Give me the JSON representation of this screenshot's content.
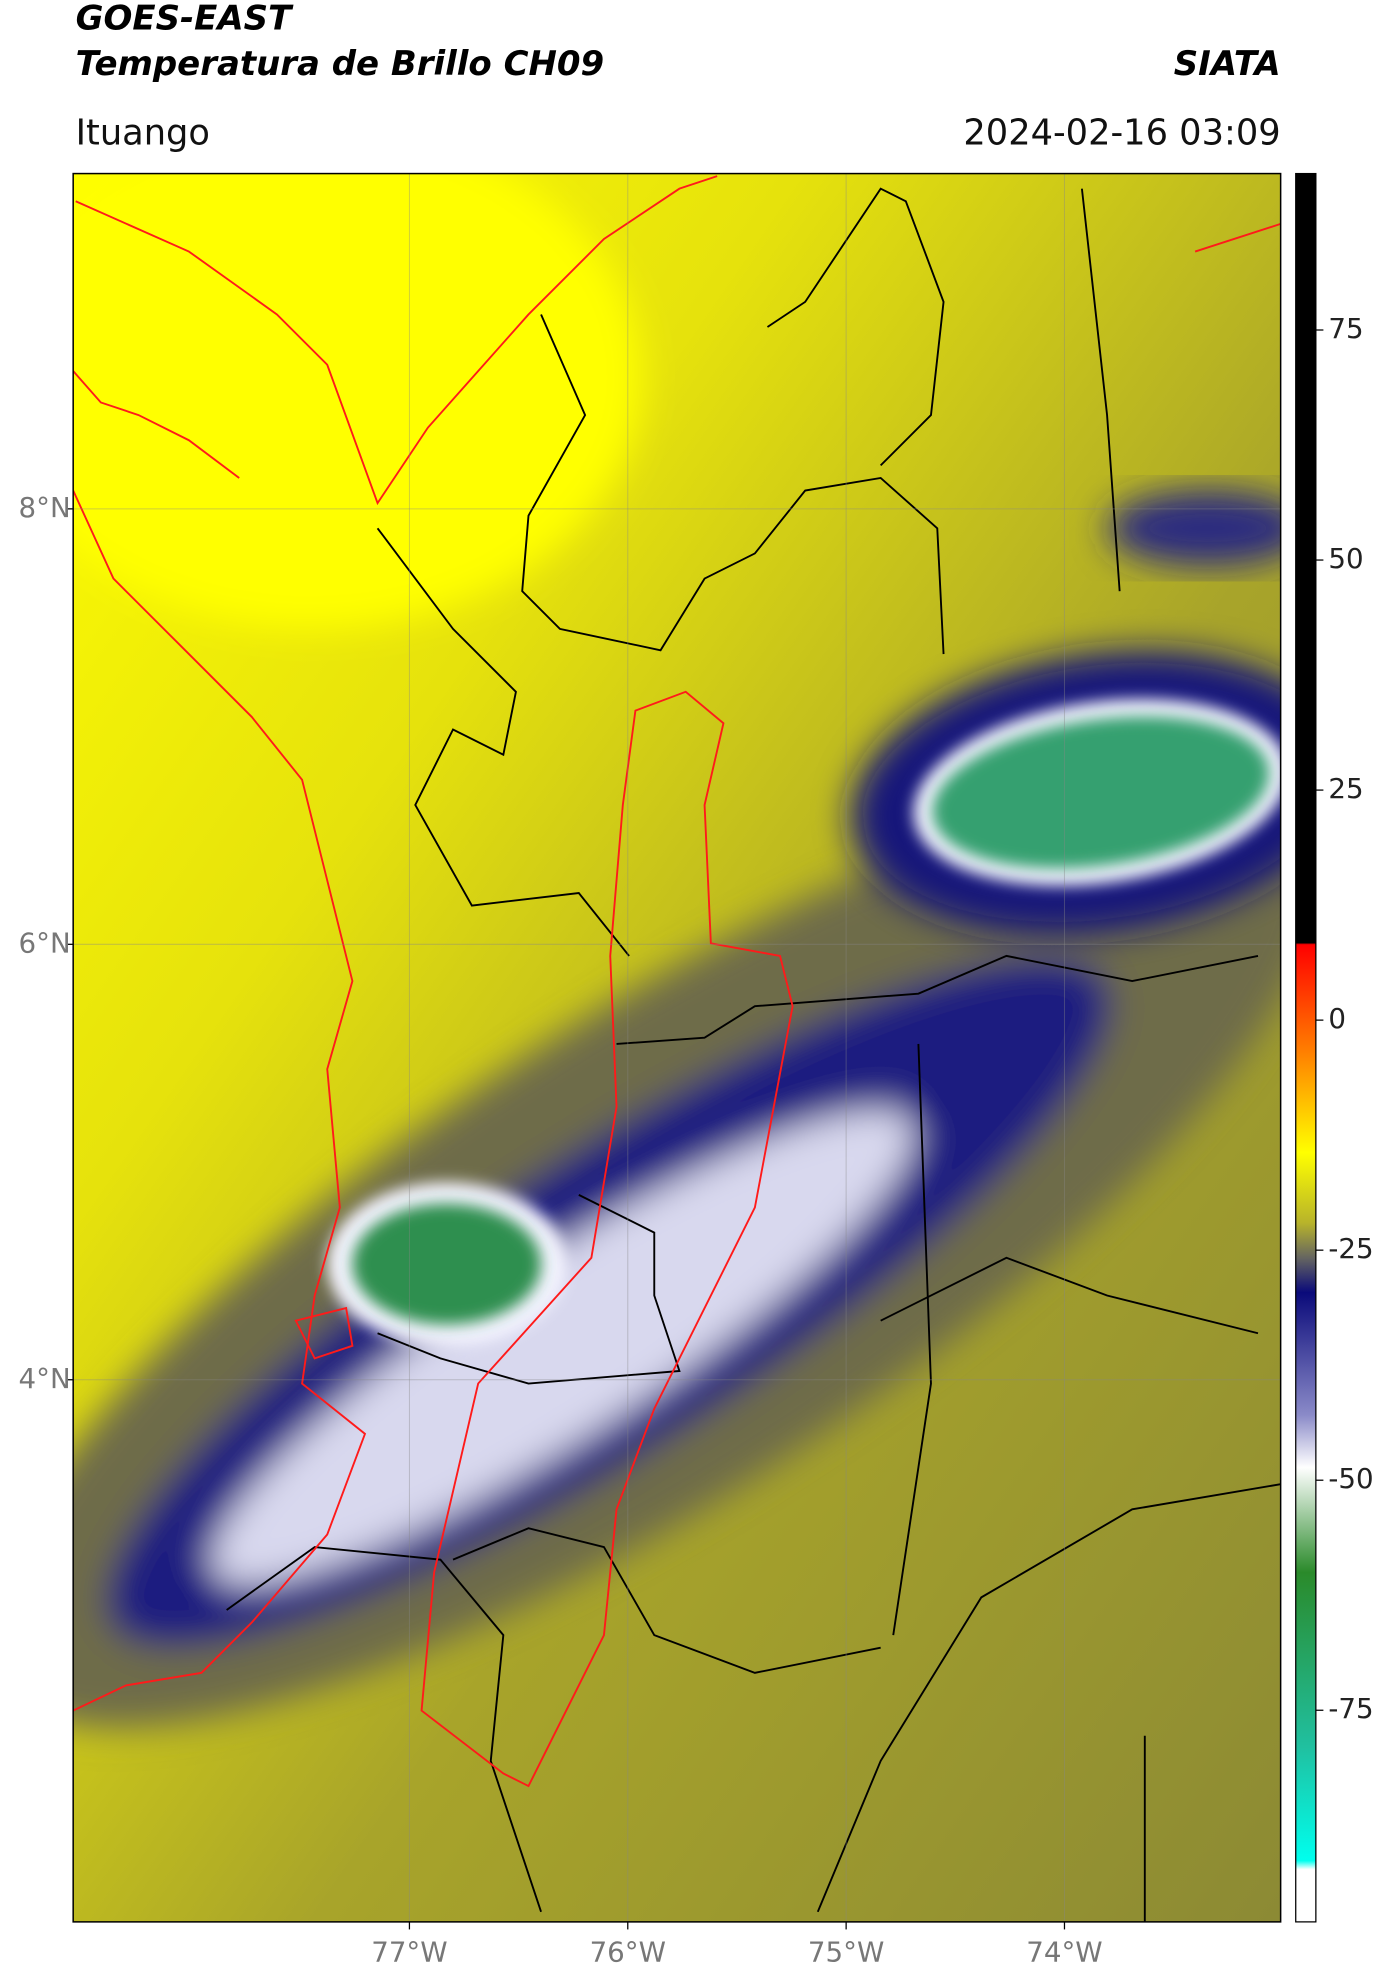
{
  "header": {
    "title": "GOES-EAST",
    "subtitle": "Temperatura de Brillo CH09",
    "source": "SIATA",
    "region": "Ituango",
    "datetime": "2024-02-16 03:09"
  },
  "map": {
    "xlim": [
      -78.54,
      -73.01
    ],
    "ylim": [
      1.51,
      9.54
    ],
    "xticks": [
      {
        "value": -77,
        "label": "77°W"
      },
      {
        "value": -76,
        "label": "76°W"
      },
      {
        "value": -75,
        "label": "75°W"
      },
      {
        "value": -74,
        "label": "74°W"
      }
    ],
    "yticks": [
      {
        "value": 8,
        "label": "8°N"
      },
      {
        "value": 6,
        "label": "6°N"
      },
      {
        "value": 4,
        "label": "4°N"
      }
    ],
    "grid": true
  },
  "colorbar": {
    "lim": [
      -98,
      92
    ],
    "ticks": [
      75,
      50,
      25,
      0,
      -25,
      -50,
      -75
    ]
  }
}
